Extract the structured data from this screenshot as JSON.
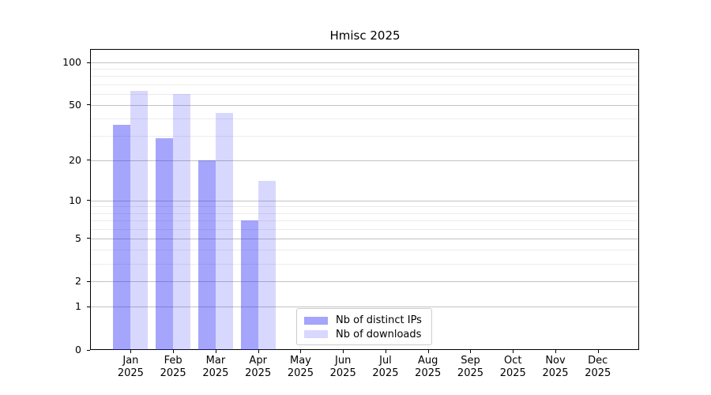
{
  "chart_data": {
    "type": "bar",
    "title": "Hmisc 2025",
    "xlabel": "",
    "ylabel": "",
    "yscale": "log1p",
    "ylim": [
      0,
      124.3
    ],
    "grid": true,
    "legend_position": "inside bottom-center",
    "y_major_ticks": [
      100,
      50,
      20,
      10,
      5,
      2,
      1,
      0
    ],
    "y_minor_ticks": [
      3,
      4,
      6,
      7,
      8,
      9,
      30,
      40,
      60,
      70,
      80,
      90
    ],
    "months": [
      "Jan",
      "Feb",
      "Mar",
      "Apr",
      "May",
      "Jun",
      "Jul",
      "Aug",
      "Sep",
      "Oct",
      "Nov",
      "Dec"
    ],
    "year": "2025",
    "categories": [
      "Jan 2025",
      "Feb 2025",
      "Mar 2025",
      "Apr 2025",
      "May 2025",
      "Jun 2025",
      "Jul 2025",
      "Aug 2025",
      "Sep 2025",
      "Oct 2025",
      "Nov 2025",
      "Dec 2025"
    ],
    "series": [
      {
        "name": "Nb of distinct IPs",
        "color": "rgba(40,40,248,0.42)",
        "values": [
          36,
          29,
          20,
          7,
          0,
          0,
          0,
          0,
          0,
          0,
          0,
          0
        ]
      },
      {
        "name": "Nb of downloads",
        "color": "rgba(40,40,248,0.18)",
        "values": [
          63,
          60,
          44,
          14,
          0,
          0,
          0,
          0,
          0,
          0,
          0,
          0
        ]
      }
    ],
    "colors": {
      "axis": "#000000",
      "major_grid": "#c2c2c2",
      "minor_grid": "#ececec",
      "background": "#ffffff"
    }
  }
}
